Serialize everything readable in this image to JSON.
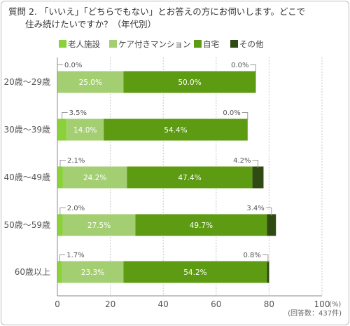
{
  "chart_data": {
    "type": "bar",
    "stacked": true,
    "orientation": "horizontal",
    "title": "質問 2. 「いいえ」「どちらでもない」とお答えの方にお伺いします。どこで住み続けたいですか？（年代別）",
    "categories": [
      "20歳〜29歳",
      "30歳〜39歳",
      "40歳〜49歳",
      "50歳〜59歳",
      "60歳以上"
    ],
    "series": [
      {
        "name": "老人施設",
        "color": "#8ad13a",
        "values": [
          0.0,
          3.5,
          2.1,
          2.0,
          1.7
        ],
        "labels": [
          "0.0%",
          "3.5%",
          "2.1%",
          "2.0%",
          "1.7%"
        ]
      },
      {
        "name": "ケア付きマンション",
        "color": "#a3cf72",
        "values": [
          25.0,
          14.0,
          24.2,
          27.5,
          23.3
        ],
        "labels": [
          "25.0%",
          "14.0%",
          "24.2%",
          "27.5%",
          "23.3%"
        ]
      },
      {
        "name": "自宅",
        "color": "#5c9b12",
        "values": [
          50.0,
          54.4,
          47.4,
          49.7,
          54.2
        ],
        "labels": [
          "50.0%",
          "54.4%",
          "47.4%",
          "49.7%",
          "54.2%"
        ]
      },
      {
        "name": "その他",
        "color": "#2f4a12",
        "values": [
          0.0,
          0.0,
          4.2,
          3.4,
          0.8
        ],
        "labels": [
          "0.0%",
          "0.0%",
          "4.2%",
          "3.4%",
          "0.8%"
        ]
      }
    ],
    "xlim": [
      0,
      100
    ],
    "xticks": [
      "0",
      "20",
      "40",
      "60",
      "80",
      "100"
    ],
    "unit": "(%)",
    "note": "(回答数：437件)",
    "grid": true,
    "legend": "top"
  }
}
